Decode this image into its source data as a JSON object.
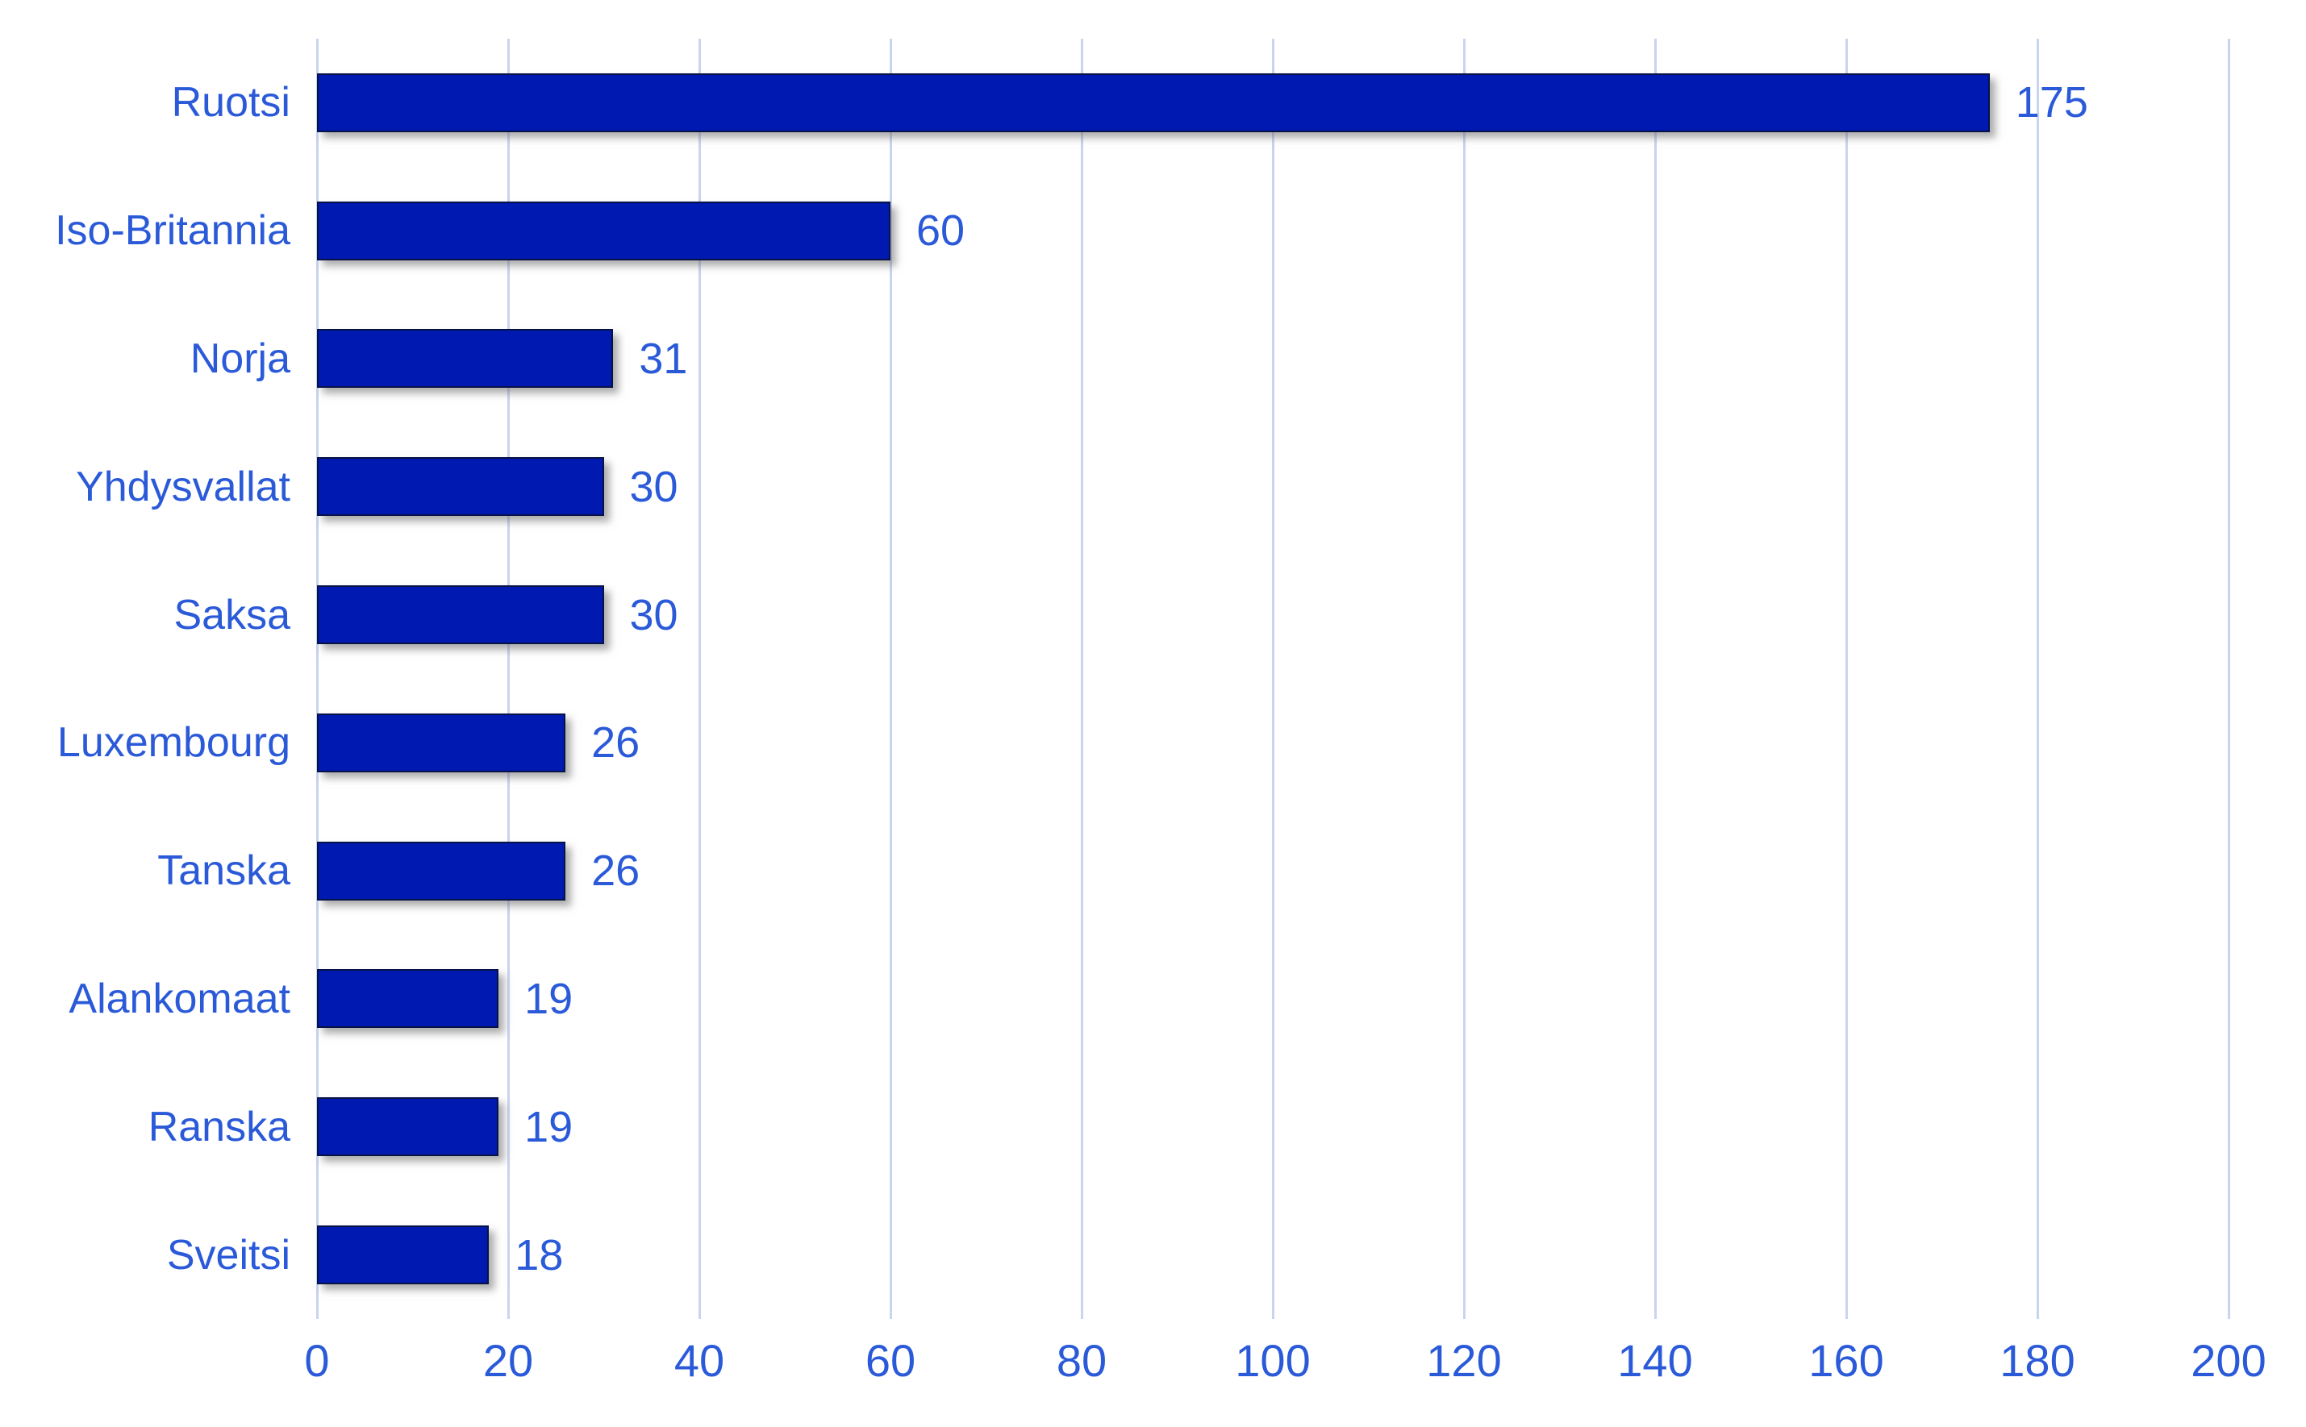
{
  "chart_data": {
    "type": "bar",
    "orientation": "horizontal",
    "title": "",
    "xlabel": "",
    "ylabel": "",
    "categories": [
      "Ruotsi",
      "Iso-Britannia",
      "Norja",
      "Yhdysvallat",
      "Saksa",
      "Luxembourg",
      "Tanska",
      "Alankomaat",
      "Ranska",
      "Sveitsi"
    ],
    "values": [
      175,
      60,
      31,
      30,
      30,
      26,
      26,
      19,
      19,
      18
    ],
    "data_labels": [
      "175",
      "60",
      "31",
      "30",
      "30",
      "26",
      "26",
      "19",
      "19",
      "18"
    ],
    "xlim": [
      0,
      200
    ],
    "xticks": [
      0,
      20,
      40,
      60,
      80,
      100,
      120,
      140,
      160,
      180,
      200
    ],
    "xtick_labels": [
      "0",
      "20",
      "40",
      "60",
      "80",
      "100",
      "120",
      "140",
      "160",
      "180",
      "200"
    ],
    "grid": "vertical",
    "legend": "none",
    "colors": {
      "bar_fill": "#0019B0",
      "bar_border": "#071245",
      "text_blue": "#2B5AD9",
      "gridline": "#C9D4F0",
      "background": "#FFFFFF"
    }
  }
}
